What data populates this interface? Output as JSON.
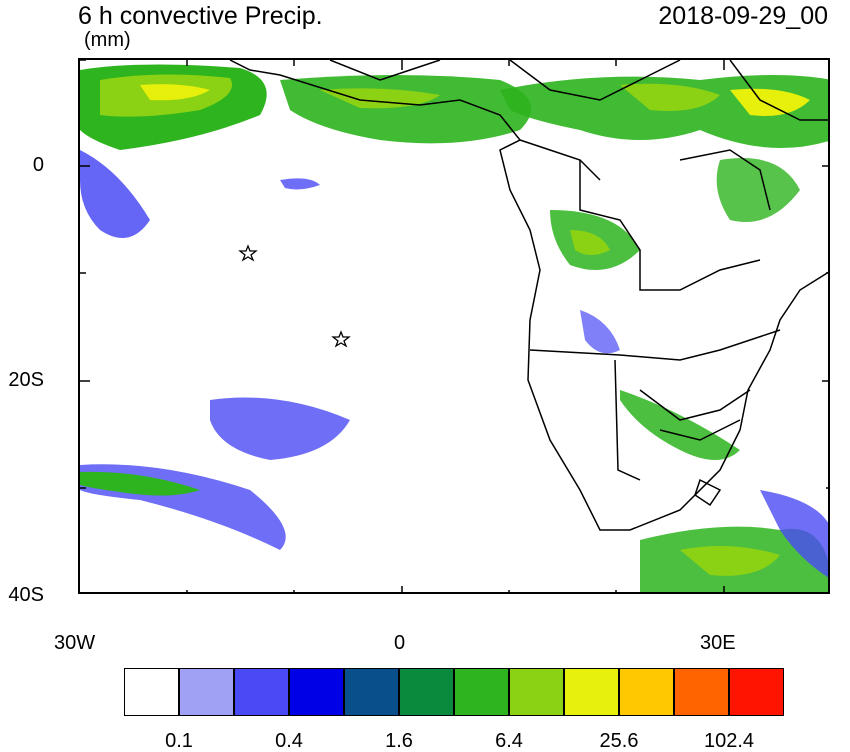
{
  "header": {
    "title": "6 h convective Precip.",
    "units": "(mm)",
    "datetime": "2018-09-29_00"
  },
  "map": {
    "y_axis_labels": [
      "0",
      "20S",
      "40S"
    ],
    "x_axis_labels": [
      "30W",
      "0",
      "30E"
    ],
    "markers": [
      "star",
      "star"
    ]
  },
  "colorbar": {
    "colors": [
      "#ffffff",
      "#a0a0f5",
      "#4a4af5",
      "#0000e6",
      "#08508c",
      "#0a8a3c",
      "#2eb41e",
      "#8cd214",
      "#e6f00a",
      "#ffc800",
      "#ff6400",
      "#ff1400"
    ],
    "labels": [
      "0.1",
      "0.4",
      "1.6",
      "6.4",
      "25.6",
      "102.4"
    ]
  }
}
